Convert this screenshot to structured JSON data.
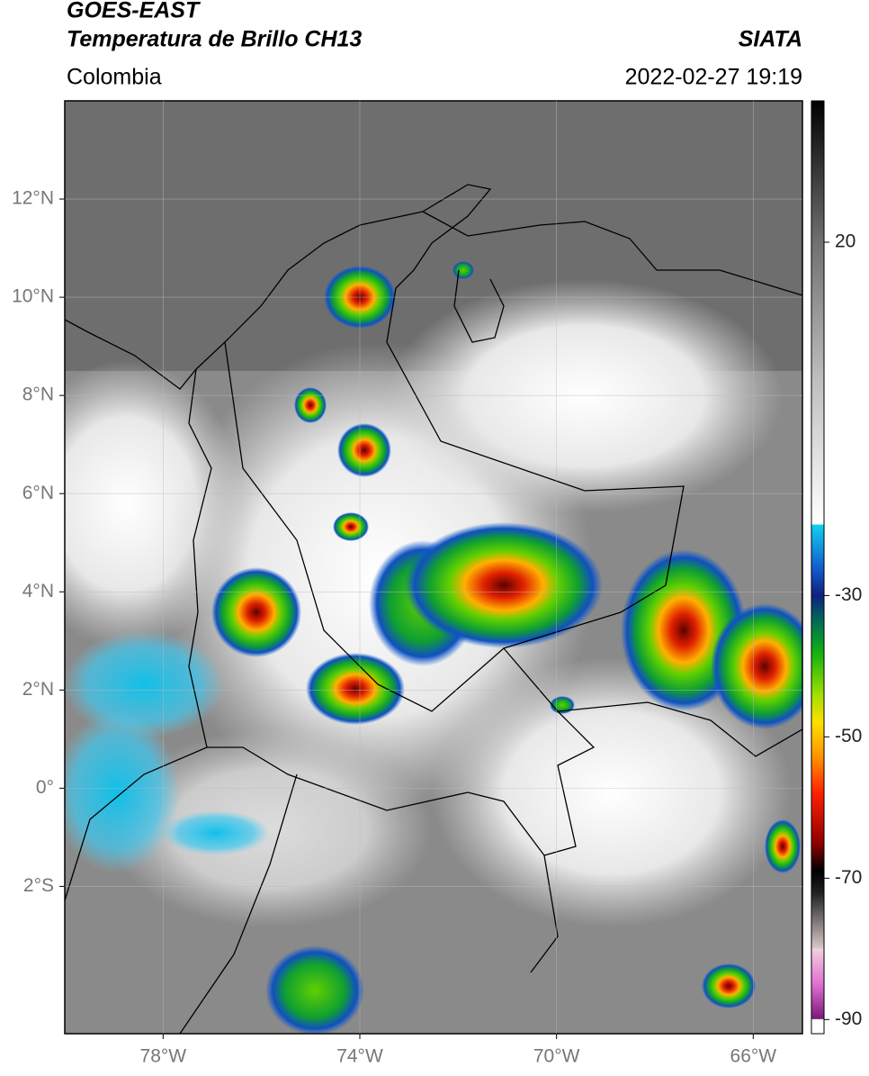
{
  "header": {
    "title": "GOES-EAST",
    "subtitle": "Temperatura de Brillo CH13",
    "source": "SIATA",
    "region": "Colombia",
    "datetime": "2022-02-27 19:19"
  },
  "map": {
    "xlim": [
      -80,
      -65
    ],
    "ylim": [
      -5,
      14
    ],
    "xticks": [
      {
        "value": -78,
        "label": "78°W"
      },
      {
        "value": -74,
        "label": "74°W"
      },
      {
        "value": -70,
        "label": "70°W"
      },
      {
        "value": -66,
        "label": "66°W"
      }
    ],
    "yticks": [
      {
        "value": 12,
        "label": "12°N"
      },
      {
        "value": 10,
        "label": "10°N"
      },
      {
        "value": 8,
        "label": "8°N"
      },
      {
        "value": 6,
        "label": "6°N"
      },
      {
        "value": 4,
        "label": "4°N"
      },
      {
        "value": 2,
        "label": "2°N"
      },
      {
        "value": 0,
        "label": "0°"
      },
      {
        "value": -2,
        "label": "2°S"
      }
    ],
    "grid": true
  },
  "colorbar": {
    "lim": [
      -92,
      40
    ],
    "ticks": [
      20,
      -30,
      -50,
      -70,
      -90
    ],
    "colormap": [
      {
        "value": -92,
        "color": "#ffffff"
      },
      {
        "value": -90,
        "color": "#ffffff"
      },
      {
        "value": -89.9,
        "color": "#7a1a7a"
      },
      {
        "value": -85,
        "color": "#e070d0"
      },
      {
        "value": -80,
        "color": "#f0d0e0"
      },
      {
        "value": -79.9,
        "color": "#d8c8c8"
      },
      {
        "value": -72,
        "color": "#202020"
      },
      {
        "value": -69,
        "color": "#000000"
      },
      {
        "value": -65,
        "color": "#900000"
      },
      {
        "value": -58,
        "color": "#ff2000"
      },
      {
        "value": -53,
        "color": "#ff9000"
      },
      {
        "value": -48,
        "color": "#ffe000"
      },
      {
        "value": -44,
        "color": "#a0e000"
      },
      {
        "value": -38,
        "color": "#10b010"
      },
      {
        "value": -33,
        "color": "#006060"
      },
      {
        "value": -30,
        "color": "#102080"
      },
      {
        "value": -26,
        "color": "#1060d0"
      },
      {
        "value": -20,
        "color": "#10d0f0"
      },
      {
        "value": -19.9,
        "color": "#ffffff"
      },
      {
        "value": 0,
        "color": "#c0c0c0"
      },
      {
        "value": 20,
        "color": "#707070"
      },
      {
        "value": 40,
        "color": "#000000"
      }
    ]
  }
}
